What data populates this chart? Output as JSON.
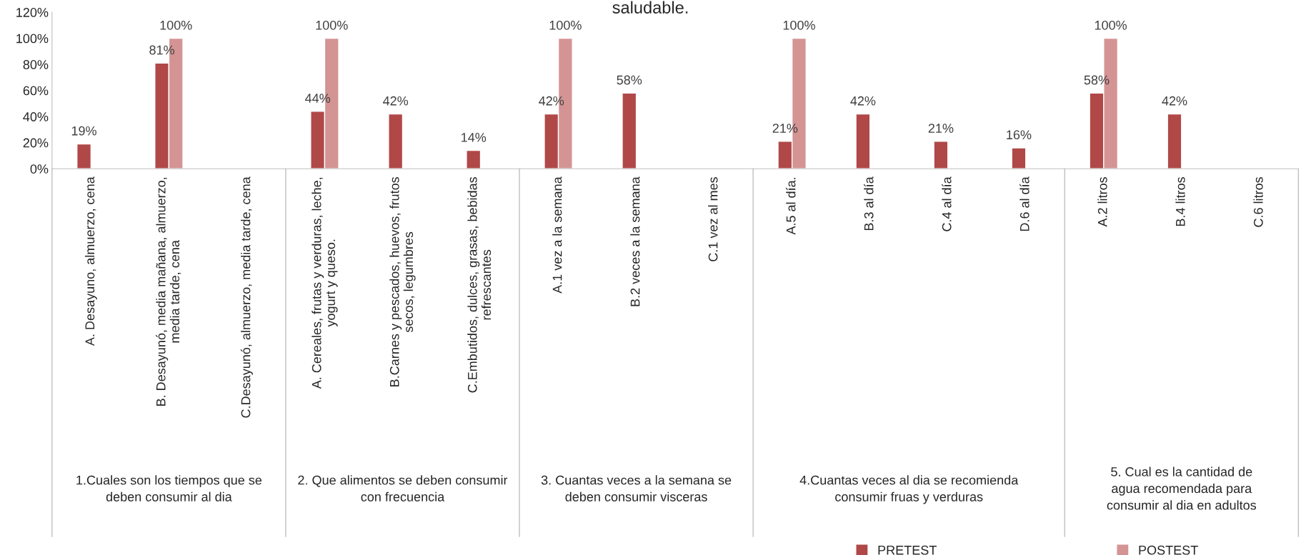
{
  "chart_data": {
    "type": "bar",
    "title": "saludable.",
    "categories": [
      "A. Desayuno, almuerzo, cena",
      "B. Desayunó, media mañana, almuerzo,\nmedia tarde, cena",
      "C.Desayunó, almuerzo, media tarde, cena",
      "A. Cereales, frutas y verduras, leche,\nyogurt y queso.",
      "B.Carnes y pescados, huevos, frutos\nsecos, legumbres",
      "C.Embutidos, dulces, grasas, bebidas\nrefrescantes",
      "A.1 vez a la semana",
      "B.2 veces a la semana",
      "C.1 vez al mes",
      "A.5 al día.",
      "B.3 al día",
      "C.4 al día",
      "D.6 al día",
      "A.2 litros",
      "B.4 litros",
      "C.6 litros"
    ],
    "series": [
      {
        "name": "PRETEST",
        "color": "#b04848",
        "values": [
          19,
          81,
          null,
          44,
          42,
          14,
          42,
          58,
          null,
          21,
          42,
          21,
          16,
          58,
          42,
          null
        ],
        "value_labels": [
          "19%",
          "81%",
          null,
          "44%",
          "42%",
          "14%",
          "42%",
          "58%",
          null,
          "21%",
          "42%",
          "21%",
          "16%",
          "58%",
          "42%",
          null
        ]
      },
      {
        "name": "POSTEST",
        "color": "#d49494",
        "values": [
          null,
          100,
          null,
          100,
          null,
          null,
          100,
          null,
          null,
          100,
          null,
          null,
          null,
          100,
          null,
          null
        ],
        "value_labels": [
          null,
          "100%",
          null,
          "100%",
          null,
          null,
          "100%",
          null,
          null,
          "100%",
          null,
          null,
          null,
          "100%",
          null,
          null
        ]
      }
    ],
    "annotations": [
      "1.Cuales son los tiempos que se\ndeben consumir al dia",
      "2. Que alimentos se deben consumir\ncon frecuencia",
      "3. Cuantas veces a la semana se\ndeben consumir visceras",
      "4.Cuantas veces al dia se recomienda\nconsumir fruas y verduras",
      "5. Cual es la cantidad de\nagua recomendada para\nconsumir al dia en adultos"
    ],
    "ylim": [
      0,
      120
    ],
    "yticks": [
      {
        "value": 0,
        "label": "0%"
      },
      {
        "value": 20,
        "label": "20%"
      },
      {
        "value": 40,
        "label": "40%"
      },
      {
        "value": 60,
        "label": "60%"
      },
      {
        "value": 80,
        "label": "80%"
      },
      {
        "value": 100,
        "label": "100%"
      },
      {
        "value": 120,
        "label": "120%"
      }
    ],
    "grid": false,
    "legend": "bottom right"
  }
}
